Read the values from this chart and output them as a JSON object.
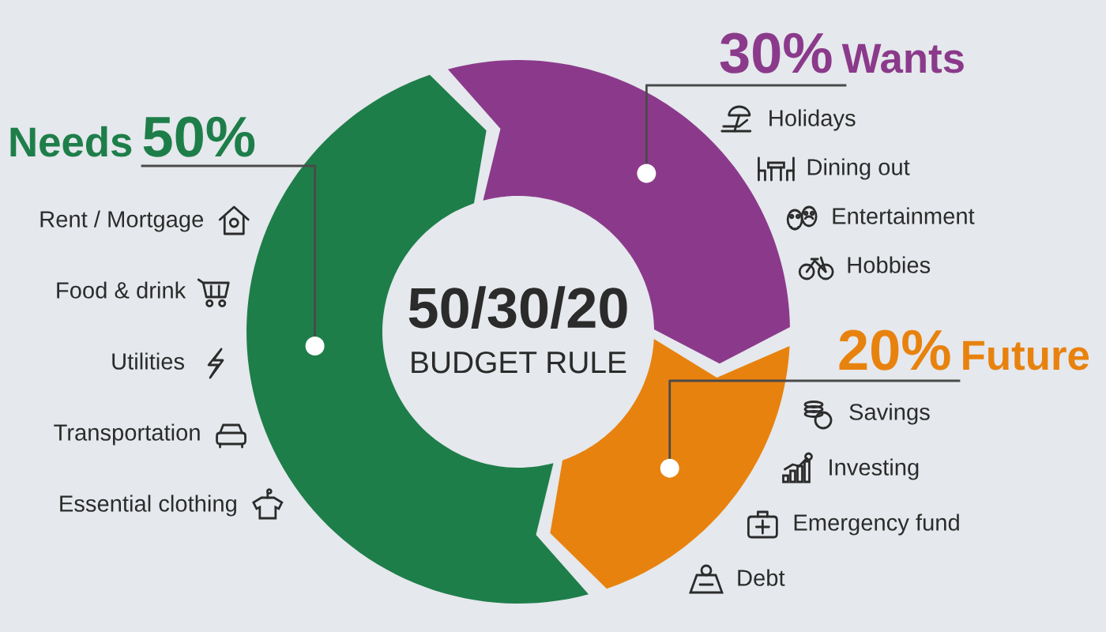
{
  "chart_data": {
    "type": "donut",
    "title": "50/30/20",
    "subtitle": "BUDGET RULE",
    "categories": [
      "Needs",
      "Wants",
      "Future"
    ],
    "values": [
      50,
      30,
      20
    ],
    "value_labels": [
      "50%",
      "30%",
      "20%"
    ],
    "colors": [
      "#1e7e4a",
      "#8b3a8b",
      "#e8820e"
    ],
    "annotations": [
      {
        "text": "Rent / Mortgage",
        "x": "Needs"
      },
      {
        "text": "Food & drink",
        "x": "Needs"
      },
      {
        "text": "Utilities",
        "x": "Needs"
      },
      {
        "text": "Transportation",
        "x": "Needs"
      },
      {
        "text": "Essential clothing",
        "x": "Needs"
      },
      {
        "text": "Holidays",
        "x": "Wants"
      },
      {
        "text": "Dining out",
        "x": "Wants"
      },
      {
        "text": "Entertainment",
        "x": "Wants"
      },
      {
        "text": "Hobbies",
        "x": "Wants"
      },
      {
        "text": "Savings",
        "x": "Future"
      },
      {
        "text": "Investing",
        "x": "Future"
      },
      {
        "text": "Emergency fund",
        "x": "Future"
      },
      {
        "text": "Debt",
        "x": "Future"
      }
    ]
  }
}
